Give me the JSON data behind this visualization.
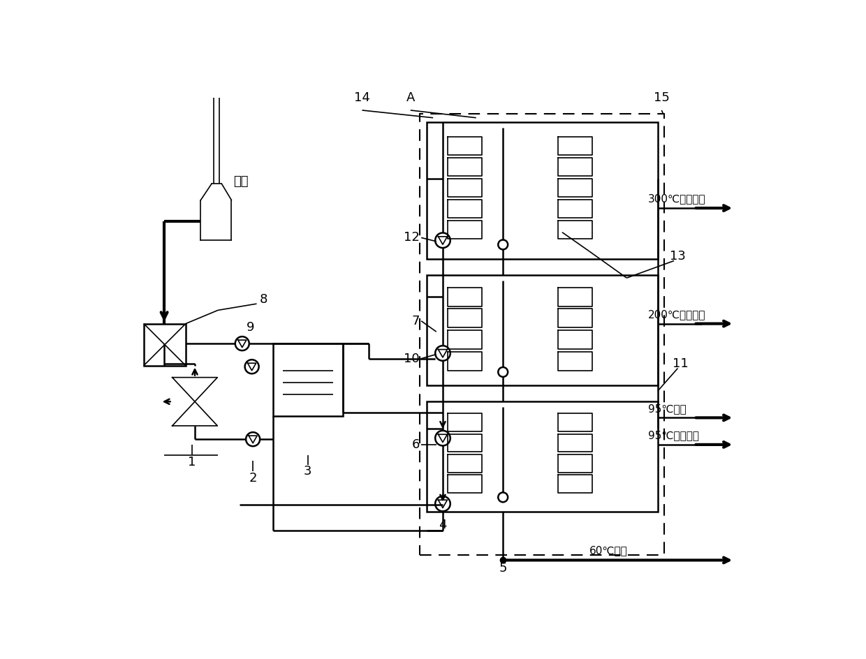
{
  "bg_color": "#ffffff",
  "labels": {
    "boiler": "锅炉",
    "out_300": "300℃换热输出",
    "out_200": "200℃换热输出",
    "out_95a": "95℃输出",
    "out_95b": "95℃换热输出",
    "out_60": "60℃输出"
  }
}
